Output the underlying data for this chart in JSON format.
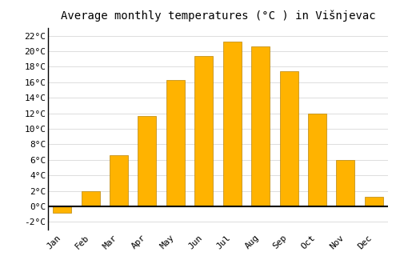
{
  "title": "Average monthly temperatures (°C ) in Višnjevac",
  "months": [
    "Jan",
    "Feb",
    "Mar",
    "Apr",
    "May",
    "Jun",
    "Jul",
    "Aug",
    "Sep",
    "Oct",
    "Nov",
    "Dec"
  ],
  "values": [
    -0.8,
    2.0,
    6.6,
    11.6,
    16.3,
    19.4,
    21.2,
    20.6,
    17.4,
    12.0,
    6.0,
    1.2
  ],
  "bar_color": "#FFB300",
  "bar_edge_color": "#B8860B",
  "ylim": [
    -3,
    23
  ],
  "yticks": [
    -2,
    0,
    2,
    4,
    6,
    8,
    10,
    12,
    14,
    16,
    18,
    20,
    22
  ],
  "background_color": "#ffffff",
  "grid_color": "#dddddd",
  "title_fontsize": 10,
  "tick_fontsize": 8,
  "font_family": "monospace"
}
